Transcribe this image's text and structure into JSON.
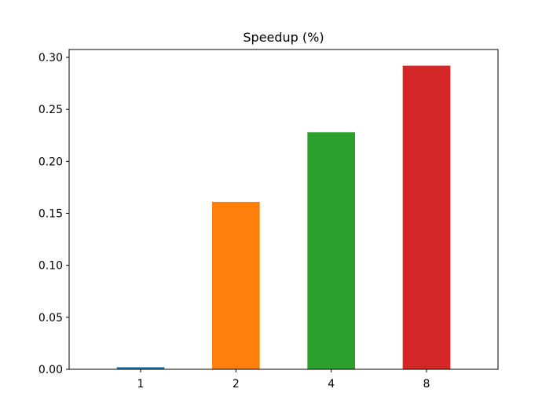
{
  "chart_data": {
    "type": "bar",
    "title": "Speedup (%)",
    "xlabel": "",
    "ylabel": "",
    "categories": [
      "1",
      "2",
      "4",
      "8"
    ],
    "values": [
      0.002,
      0.161,
      0.228,
      0.292
    ],
    "colors": [
      "#1f77b4",
      "#ff7f0e",
      "#2ca02c",
      "#d62728"
    ],
    "ylim": [
      0,
      0.3
    ],
    "yticks": [
      "0.00",
      "0.05",
      "0.10",
      "0.15",
      "0.20",
      "0.25",
      "0.30"
    ],
    "grid": false,
    "legend": "none"
  }
}
